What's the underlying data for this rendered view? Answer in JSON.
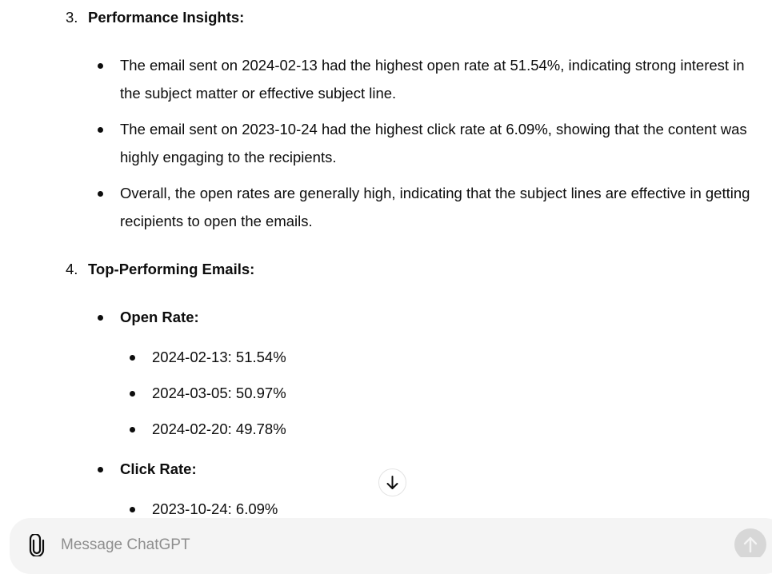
{
  "sections": [
    {
      "number": "3.",
      "title": "Performance Insights:",
      "bullets": [
        "The email sent on 2024-02-13 had the highest open rate at 51.54%, indicating strong interest in the subject matter or effective subject line.",
        "The email sent on 2023-10-24 had the highest click rate at 6.09%, showing that the content was highly engaging to the recipients.",
        "Overall, the open rates are generally high, indicating that the subject lines are effective in getting recipients to open the emails."
      ]
    },
    {
      "number": "4.",
      "title": "Top-Performing Emails:",
      "groups": [
        {
          "title": "Open Rate:",
          "items": [
            "2024-02-13: 51.54%",
            "2024-03-05: 50.97%",
            "2024-02-20: 49.78%"
          ]
        },
        {
          "title": "Click Rate:",
          "items": [
            "2023-10-24: 6.09%"
          ]
        }
      ]
    }
  ],
  "composer": {
    "placeholder": "Message ChatGPT"
  }
}
